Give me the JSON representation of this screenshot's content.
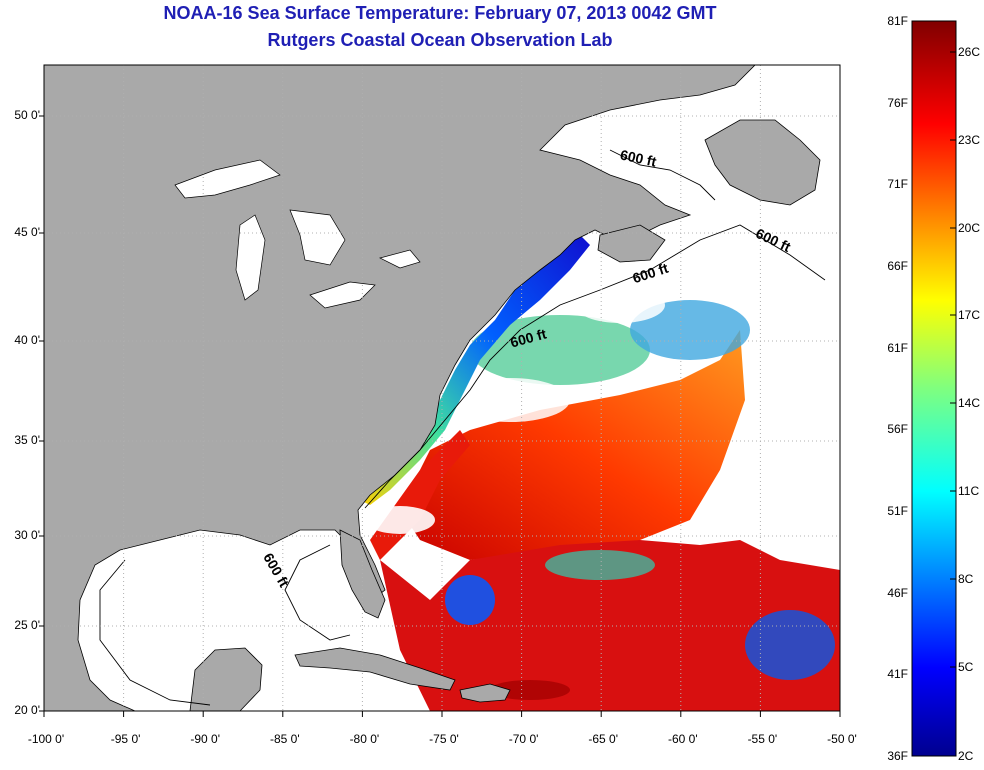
{
  "header": {
    "title": "NOAA-16 Sea Surface Temperature:  February 07, 2013 0042 GMT",
    "subtitle": "Rutgers Coastal Ocean Observation Lab"
  },
  "map": {
    "lon_ticks": [
      "-100 0'",
      "-95 0'",
      "-90 0'",
      "-85 0'",
      "-80 0'",
      "-75 0'",
      "-70 0'",
      "-65 0'",
      "-60 0'",
      "-55 0'",
      "-50 0'"
    ],
    "lat_ticks": [
      "50 0'",
      "45 0'",
      "40 0'",
      "35 0'",
      "30 0'",
      "25 0'",
      "20 0'"
    ],
    "depth_contour_labels": [
      "600 ft",
      "600 ft",
      "600 ft",
      "600 ft",
      "600 ft"
    ],
    "colors": {
      "land": "#a9a9a9",
      "cloud": "#ffffff",
      "grid": "#b0b0b0"
    }
  },
  "colorbar": {
    "fahrenheit_labels": [
      "81F",
      "76F",
      "71F",
      "66F",
      "61F",
      "56F",
      "51F",
      "46F",
      "41F",
      "36F"
    ],
    "celsius_labels": [
      "26C",
      "23C",
      "20C",
      "17C",
      "14C",
      "11C",
      "8C",
      "5C",
      "2C"
    ]
  }
}
